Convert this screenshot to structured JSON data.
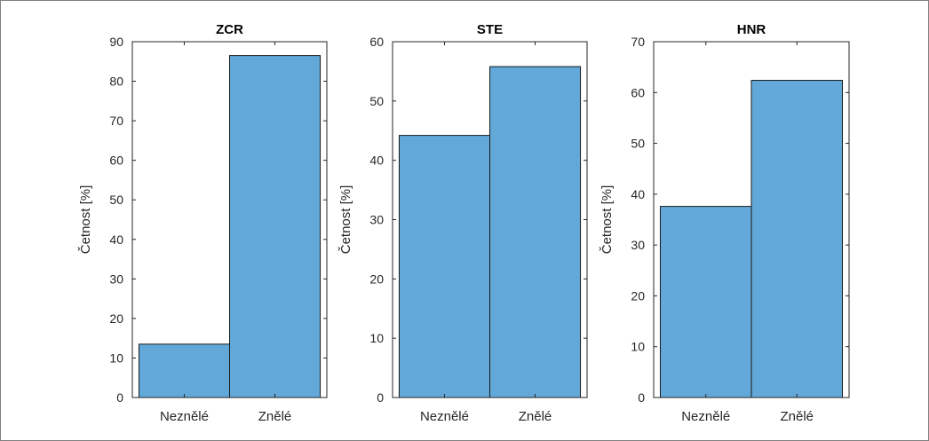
{
  "colors": {
    "bar_fill": "#62a8d8",
    "bar_edge": "#1a1a1a",
    "axis": "#262626",
    "text": "#262626"
  },
  "chart_data": [
    {
      "type": "bar",
      "title": "ZCR",
      "ylabel": "Četnost [%]",
      "categories": [
        "Neznělé",
        "Znělé"
      ],
      "values": [
        13.5,
        86.5
      ],
      "ylim": [
        0,
        90
      ],
      "yticks": [
        0,
        10,
        20,
        30,
        40,
        50,
        60,
        70,
        80,
        90
      ],
      "grid": false
    },
    {
      "type": "bar",
      "title": "STE",
      "ylabel": "Četnost [%]",
      "categories": [
        "Neznělé",
        "Znělé"
      ],
      "values": [
        44.2,
        55.8
      ],
      "ylim": [
        0,
        60
      ],
      "yticks": [
        0,
        10,
        20,
        30,
        40,
        50,
        60
      ],
      "grid": false
    },
    {
      "type": "bar",
      "title": "HNR",
      "ylabel": "Četnost [%]",
      "categories": [
        "Neznělé",
        "Znělé"
      ],
      "values": [
        37.6,
        62.4
      ],
      "ylim": [
        0,
        70
      ],
      "yticks": [
        0,
        10,
        20,
        30,
        40,
        50,
        60,
        70
      ],
      "grid": false
    }
  ]
}
